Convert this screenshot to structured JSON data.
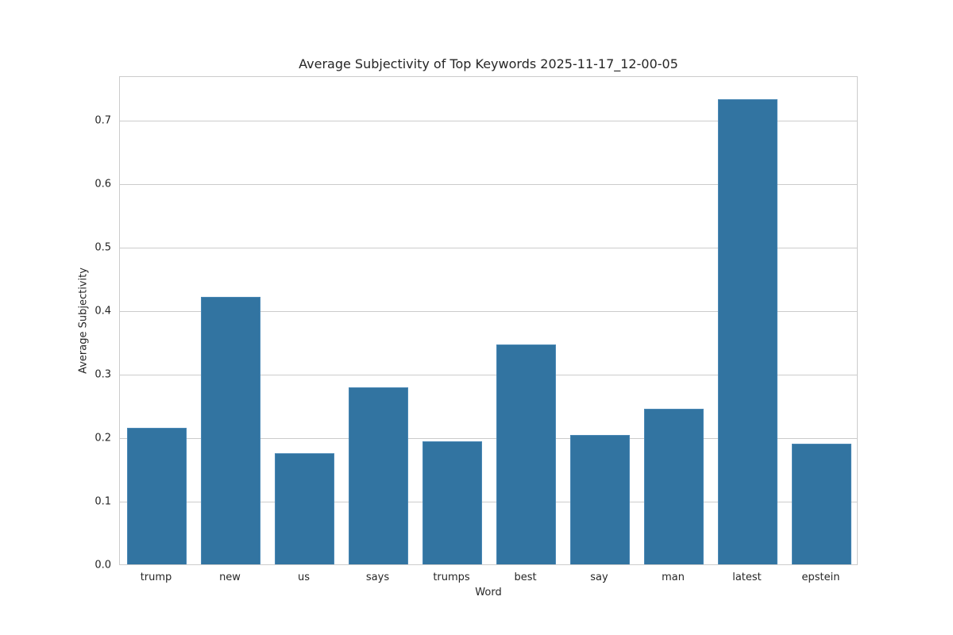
{
  "chart_data": {
    "type": "bar",
    "title": "Average Subjectivity of Top Keywords 2025-11-17_12-00-05",
    "xlabel": "Word",
    "ylabel": "Average Subjectivity",
    "categories": [
      "trump",
      "new",
      "us",
      "says",
      "trumps",
      "best",
      "say",
      "man",
      "latest",
      "epstein"
    ],
    "values": [
      0.215,
      0.421,
      0.175,
      0.279,
      0.194,
      0.346,
      0.204,
      0.245,
      0.733,
      0.19
    ],
    "ylim": [
      0,
      0.77
    ],
    "yticks": [
      "0.0",
      "0.1",
      "0.2",
      "0.3",
      "0.4",
      "0.5",
      "0.6",
      "0.7"
    ],
    "grid": true,
    "legend": null,
    "bar_color": "#3274a1"
  }
}
